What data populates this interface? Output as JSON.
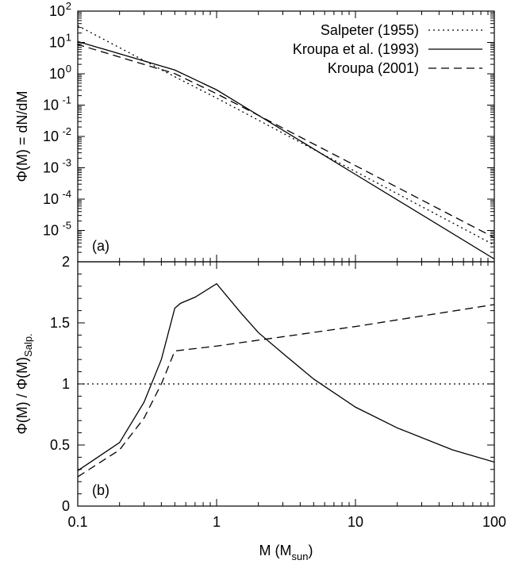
{
  "chart_data": [
    {
      "panel": "(a)",
      "type": "line",
      "ylabel": "Φ(M) = dN/dM",
      "yscale": "log",
      "xscale": "log",
      "xlim": [
        0.1,
        100
      ],
      "ylim": [
        1e-06,
        100
      ],
      "y_ticks": [
        {
          "base": "10",
          "exp": "2"
        },
        {
          "base": "10",
          "exp": "1"
        },
        {
          "base": "10",
          "exp": "0"
        },
        {
          "base": "10",
          "exp": "-1"
        },
        {
          "base": "10",
          "exp": "-2"
        },
        {
          "base": "10",
          "exp": "-3"
        },
        {
          "base": "10",
          "exp": "-4"
        },
        {
          "base": "10",
          "exp": "-5"
        }
      ],
      "legend_position": "top-right",
      "series": [
        {
          "name": "Salpeter (1955)",
          "style": "dotted",
          "x": [
            0.1,
            0.5,
            1,
            10,
            100
          ],
          "y": [
            34.2,
            0.804,
            0.168,
            0.000759,
            3.43e-06
          ]
        },
        {
          "name": "Kroupa et al. (1993)",
          "style": "solid",
          "x": [
            0.1,
            0.5,
            1,
            10,
            100
          ],
          "y": [
            10.7,
            1.32,
            0.307,
            0.000614,
            1.23e-06
          ]
        },
        {
          "name": "Kroupa (2001)",
          "style": "dashed",
          "x": [
            0.08,
            0.1,
            0.5,
            1,
            10,
            100
          ],
          "y": [
            11.7,
            8.6,
            1.01,
            0.231,
            0.00117,
            5.9e-06
          ]
        }
      ]
    },
    {
      "panel": "(b)",
      "type": "line",
      "ylabel_main": "Φ(M) / Φ(M)",
      "ylabel_sub": "Salp.",
      "xlabel_main": "M (M",
      "xlabel_sub": "sun",
      "xlabel_end": ")",
      "xscale": "log",
      "xlim": [
        0.1,
        100
      ],
      "ylim": [
        0,
        2
      ],
      "x_ticks": [
        "0.1",
        "1",
        "10",
        "100"
      ],
      "y_ticks": [
        "0",
        "0.5",
        "1",
        "1.5",
        "2"
      ],
      "series": [
        {
          "name": "Salpeter (1955)",
          "style": "dotted",
          "x": [
            0.1,
            100
          ],
          "y": [
            1,
            1
          ]
        },
        {
          "name": "Kroupa et al. (1993)",
          "style": "solid",
          "x": [
            0.1,
            0.2,
            0.3,
            0.4,
            0.5,
            0.55,
            0.7,
            1.0,
            1.5,
            2,
            3,
            5,
            10,
            20,
            50,
            100
          ],
          "y": [
            0.29,
            0.52,
            0.85,
            1.2,
            1.62,
            1.66,
            1.71,
            1.82,
            1.58,
            1.42,
            1.25,
            1.04,
            0.81,
            0.64,
            0.46,
            0.36
          ]
        },
        {
          "name": "Kroupa (2001)",
          "style": "dashed",
          "x": [
            0.1,
            0.2,
            0.3,
            0.4,
            0.5,
            1,
            10,
            100
          ],
          "y": [
            0.24,
            0.46,
            0.72,
            1.0,
            1.27,
            1.31,
            1.47,
            1.65
          ]
        }
      ]
    }
  ]
}
